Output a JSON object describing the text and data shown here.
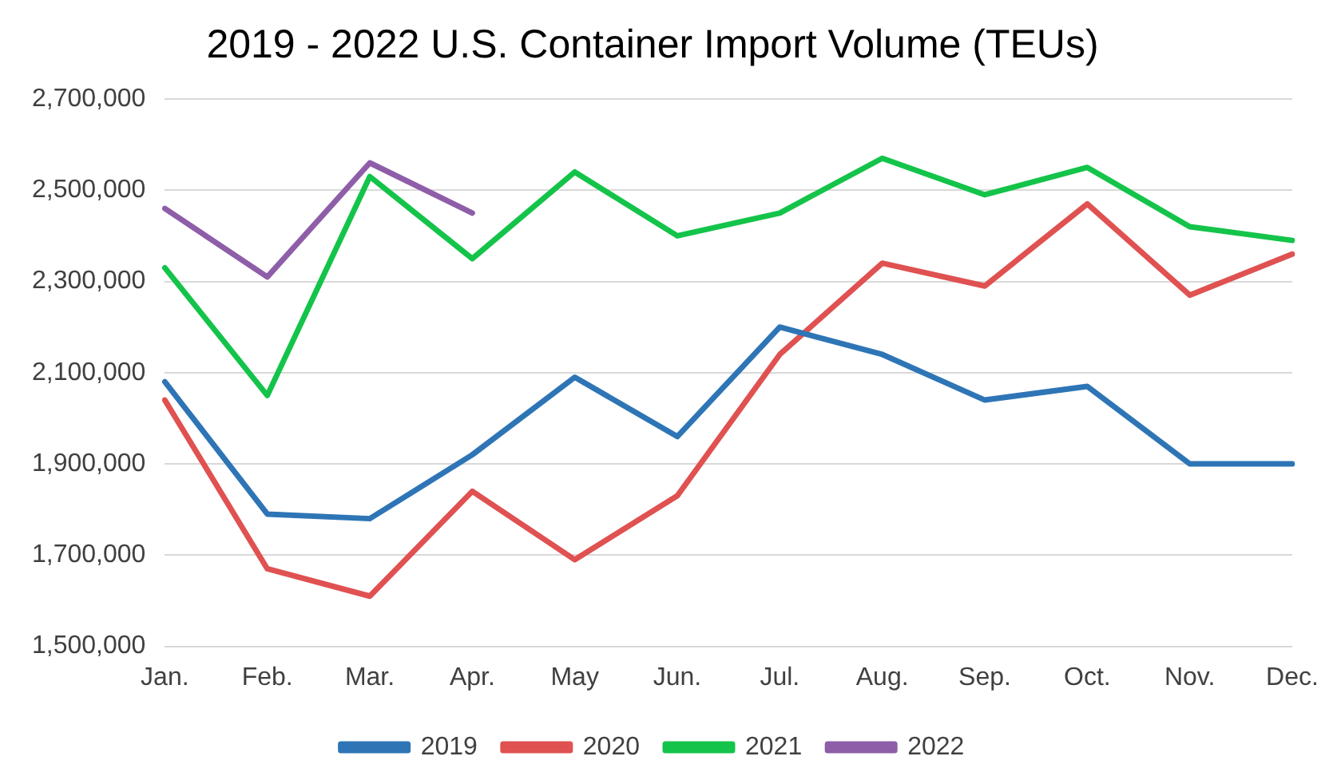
{
  "chart_data": {
    "type": "line",
    "title": "2019 - 2022 U.S. Container Import Volume (TEUs)",
    "categories": [
      "Jan.",
      "Feb.",
      "Mar.",
      "Apr.",
      "May",
      "Jun.",
      "Jul.",
      "Aug.",
      "Sep.",
      "Oct.",
      "Nov.",
      "Dec."
    ],
    "series": [
      {
        "name": "2019",
        "color": "#2e75b6",
        "values": [
          2080000,
          1790000,
          1780000,
          1920000,
          2090000,
          1960000,
          2200000,
          2140000,
          2040000,
          2070000,
          1900000,
          1900000
        ]
      },
      {
        "name": "2020",
        "color": "#e05151",
        "values": [
          2040000,
          1670000,
          1610000,
          1840000,
          1690000,
          1830000,
          2140000,
          2340000,
          2290000,
          2470000,
          2270000,
          2360000
        ]
      },
      {
        "name": "2021",
        "color": "#14c44a",
        "values": [
          2330000,
          2050000,
          2530000,
          2350000,
          2540000,
          2400000,
          2450000,
          2570000,
          2490000,
          2550000,
          2420000,
          2390000
        ]
      },
      {
        "name": "2022",
        "color": "#8e5ea8",
        "values": [
          2460000,
          2310000,
          2560000,
          2450000,
          null,
          null,
          null,
          null,
          null,
          null,
          null,
          null
        ]
      }
    ],
    "ylim": [
      1500000,
      2700000
    ],
    "yticks": [
      {
        "value": 1500000,
        "label": "1,500,000"
      },
      {
        "value": 1700000,
        "label": "1,700,000"
      },
      {
        "value": 1900000,
        "label": "1,900,000"
      },
      {
        "value": 2100000,
        "label": "2,100,000"
      },
      {
        "value": 2300000,
        "label": "2,300,000"
      },
      {
        "value": 2500000,
        "label": "2,500,000"
      },
      {
        "value": 2700000,
        "label": "2,700,000"
      }
    ],
    "grid": "y",
    "legend": "bottom",
    "marker": "none",
    "line_style": "solid"
  }
}
